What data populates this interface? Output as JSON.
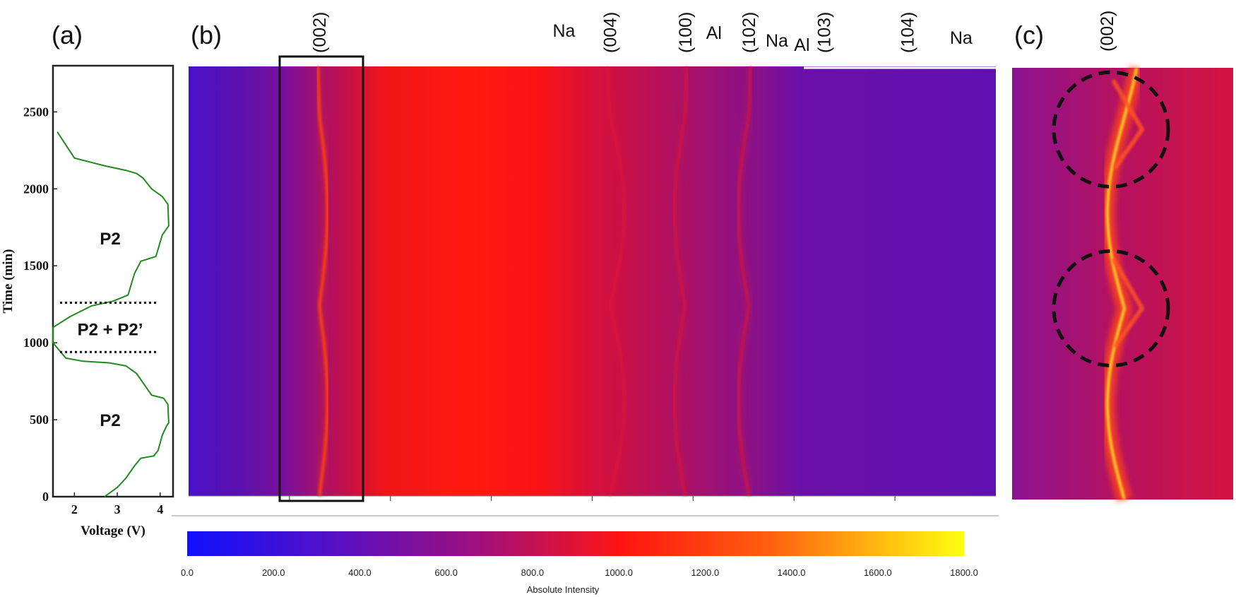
{
  "panels": {
    "a": "(a)",
    "b": "(b)",
    "c": "(c)"
  },
  "colors": {
    "low": "#1a10ff",
    "mid": "#ff1408",
    "high": "#ffff10",
    "curve": "#1f8a1f"
  },
  "chart_data": [
    {
      "panel": "(a)",
      "type": "line",
      "xlabel": "Voltage (V)",
      "ylabel": "Time (min)",
      "xlim": [
        1.5,
        4.3
      ],
      "ylim": [
        0,
        2800
      ],
      "xticks": [
        "2",
        "3",
        "4"
      ],
      "yticks": [
        "0",
        "500",
        "1000",
        "1500",
        "2000",
        "2500"
      ],
      "phase_labels": [
        {
          "text": "P2",
          "time": 500
        },
        {
          "text": "P2 + P2’",
          "time": 1090
        },
        {
          "text": "P2",
          "time": 1680
        }
      ],
      "phase_boundaries": [
        940,
        1260
      ],
      "series": [
        {
          "x": [
            2.7,
            3.0,
            3.2,
            3.4,
            3.55,
            3.85,
            3.95,
            4.05,
            4.15,
            4.2,
            4.18,
            4.08,
            3.8,
            3.6,
            3.45,
            3.2,
            2.8,
            2.2,
            1.8,
            1.5,
            1.5,
            1.9,
            2.4,
            2.9,
            3.25,
            3.4,
            3.55,
            3.9,
            4.05,
            4.15,
            4.2,
            4.18,
            4.05,
            3.8,
            3.6,
            3.45,
            3.2,
            2.7,
            2.0,
            1.6
          ],
          "y": [
            0,
            60,
            120,
            200,
            250,
            265,
            300,
            400,
            460,
            480,
            600,
            640,
            660,
            740,
            800,
            850,
            870,
            880,
            900,
            1000,
            1100,
            1170,
            1240,
            1270,
            1310,
            1450,
            1530,
            1560,
            1700,
            1740,
            1760,
            1900,
            1950,
            2000,
            2070,
            2100,
            2120,
            2150,
            2200,
            2370
          ]
        }
      ]
    },
    {
      "panel": "(b)",
      "type": "heatmap",
      "ylim": [
        0,
        2800
      ],
      "xlim": [
        0,
        1
      ],
      "peaks": [
        {
          "label": "(002)",
          "x": 0.162,
          "shift": 0.01,
          "strength": 0.62
        },
        {
          "label": "Na",
          "x": 0.465,
          "shift": 0,
          "strength": 1.0
        },
        {
          "label": "(004)",
          "x": 0.522,
          "shift": 0.018,
          "strength": 0.22
        },
        {
          "label": "(100)",
          "x": 0.615,
          "shift": -0.013,
          "strength": 0.32
        },
        {
          "label": "Al",
          "x": 0.67,
          "shift": 0,
          "strength": 0.15
        },
        {
          "label": "(102)",
          "x": 0.694,
          "shift": -0.013,
          "strength": 0.4
        },
        {
          "label": "Na",
          "x": 0.741,
          "shift": 0,
          "strength": 0.85
        },
        {
          "label": "Al",
          "x": 0.779,
          "shift": 0,
          "strength": 0.15
        },
        {
          "label": "(103)",
          "x": 0.787,
          "shift": 0,
          "strength": 0.22
        },
        {
          "label": "(104)",
          "x": 0.89,
          "shift": 0,
          "strength": 0.48
        },
        {
          "label": "Na",
          "x": 0.957,
          "shift": 0,
          "strength": 0.52
        }
      ]
    },
    {
      "panel": "(c)",
      "type": "heatmap",
      "title": "(002)",
      "highlight_times": [
        2400,
        1240
      ]
    },
    {
      "type": "colorbar",
      "title": "Absolute Intensity",
      "range": [
        0,
        1800
      ],
      "ticks": [
        "0.0",
        "200.0",
        "400.0",
        "600.0",
        "800.0",
        "1000.0",
        "1200.0",
        "1400.0",
        "1600.0",
        "1800.0"
      ]
    }
  ]
}
